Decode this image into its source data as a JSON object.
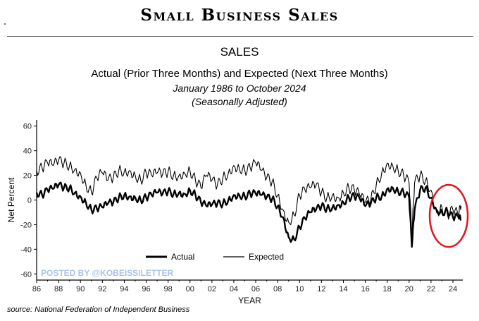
{
  "header": {
    "banner": "Small Business Sales",
    "section": "SALES",
    "subtitle": "Actual (Prior Three Months) and Expected (Next Three Months)",
    "date_range": "January 1986 to October 2024",
    "adjustment": "(Seasonally Adjusted)"
  },
  "footer": {
    "source": "source: National Federation of Independent Business",
    "watermark": "POSTED BY @KOBEISSILETTER"
  },
  "colors": {
    "line": "#000000",
    "highlight_circle": "#e0141b",
    "watermark": "#a9c2e8"
  },
  "chart_data": {
    "type": "line",
    "title": "",
    "xlabel": "YEAR",
    "ylabel": "Net Percent",
    "xlim": [
      1986,
      2024.9
    ],
    "ylim": [
      -65,
      65
    ],
    "x_tick_labels": [
      "86",
      "88",
      "90",
      "92",
      "94",
      "96",
      "98",
      "00",
      "02",
      "04",
      "06",
      "08",
      "10",
      "12",
      "14",
      "16",
      "18",
      "20",
      "22",
      "24"
    ],
    "y_tick_labels": [
      "60",
      "40",
      "20",
      "0",
      "-20",
      "-40",
      "-60"
    ],
    "legend_position": "bottom-center",
    "annotation": "red circle highlighting 2023–2024 readings",
    "series": [
      {
        "name": "Actual",
        "line_width": "thick",
        "x": [
          1986,
          1986.5,
          1987,
          1987.5,
          1988,
          1988.5,
          1989,
          1989.5,
          1990,
          1990.5,
          1991,
          1991.5,
          1992,
          1992.5,
          1993,
          1993.5,
          1994,
          1994.5,
          1995,
          1995.5,
          1996,
          1996.5,
          1997,
          1997.5,
          1998,
          1998.5,
          1999,
          1999.5,
          2000,
          2000.5,
          2001,
          2001.5,
          2002,
          2002.5,
          2003,
          2003.5,
          2004,
          2004.5,
          2005,
          2005.5,
          2006,
          2006.5,
          2007,
          2007.5,
          2008,
          2008.5,
          2009,
          2009.5,
          2010,
          2010.5,
          2011,
          2011.5,
          2012,
          2012.5,
          2013,
          2013.5,
          2014,
          2014.5,
          2015,
          2015.5,
          2016,
          2016.5,
          2017,
          2017.5,
          2018,
          2018.5,
          2019,
          2019.5,
          2020,
          2020.25,
          2020.5,
          2021,
          2021.5,
          2022,
          2022.5,
          2023,
          2023.5,
          2024,
          2024.5,
          2024.75
        ],
        "values": [
          6,
          4,
          8,
          9,
          12,
          10,
          10,
          6,
          3,
          -2,
          -8,
          -7,
          -6,
          -3,
          -2,
          2,
          4,
          3,
          2,
          0,
          2,
          4,
          6,
          5,
          7,
          5,
          6,
          5,
          8,
          4,
          -2,
          -5,
          -4,
          -3,
          -3,
          0,
          4,
          4,
          3,
          5,
          5,
          4,
          2,
          1,
          -5,
          -14,
          -30,
          -32,
          -22,
          -15,
          -10,
          -8,
          -5,
          -7,
          -6,
          -4,
          -2,
          2,
          3,
          1,
          -5,
          -3,
          2,
          3,
          9,
          10,
          7,
          6,
          2,
          -38,
          -8,
          8,
          10,
          2,
          -8,
          -10,
          -9,
          -14,
          -14,
          -16
        ]
      },
      {
        "name": "Expected",
        "line_width": "thin",
        "x": [
          1986,
          1986.5,
          1987,
          1987.5,
          1988,
          1988.5,
          1989,
          1989.5,
          1990,
          1990.5,
          1991,
          1991.5,
          1992,
          1992.5,
          1993,
          1993.5,
          1994,
          1994.5,
          1995,
          1995.5,
          1996,
          1996.5,
          1997,
          1997.5,
          1998,
          1998.5,
          1999,
          1999.5,
          2000,
          2000.5,
          2001,
          2001.5,
          2002,
          2002.5,
          2003,
          2003.5,
          2004,
          2004.5,
          2005,
          2005.5,
          2006,
          2006.5,
          2007,
          2007.5,
          2008,
          2008.5,
          2009,
          2009.5,
          2010,
          2010.5,
          2011,
          2011.5,
          2012,
          2012.5,
          2013,
          2013.5,
          2014,
          2014.5,
          2015,
          2015.5,
          2016,
          2016.5,
          2017,
          2017.5,
          2018,
          2018.5,
          2019,
          2019.5,
          2020,
          2020.25,
          2020.5,
          2021,
          2021.5,
          2022,
          2022.5,
          2023,
          2023.5,
          2024,
          2024.5,
          2024.75
        ],
        "values": [
          24,
          26,
          30,
          28,
          32,
          30,
          28,
          25,
          22,
          12,
          6,
          18,
          22,
          16,
          18,
          24,
          23,
          24,
          20,
          16,
          22,
          20,
          22,
          21,
          23,
          20,
          20,
          22,
          24,
          16,
          10,
          20,
          16,
          12,
          18,
          22,
          28,
          26,
          24,
          26,
          30,
          24,
          18,
          15,
          4,
          -8,
          -18,
          -12,
          4,
          8,
          10,
          12,
          6,
          2,
          4,
          2,
          6,
          10,
          8,
          4,
          -2,
          0,
          12,
          22,
          30,
          28,
          24,
          20,
          14,
          -30,
          14,
          20,
          16,
          8,
          -10,
          -6,
          -12,
          -8,
          -12,
          -5
        ]
      }
    ]
  }
}
